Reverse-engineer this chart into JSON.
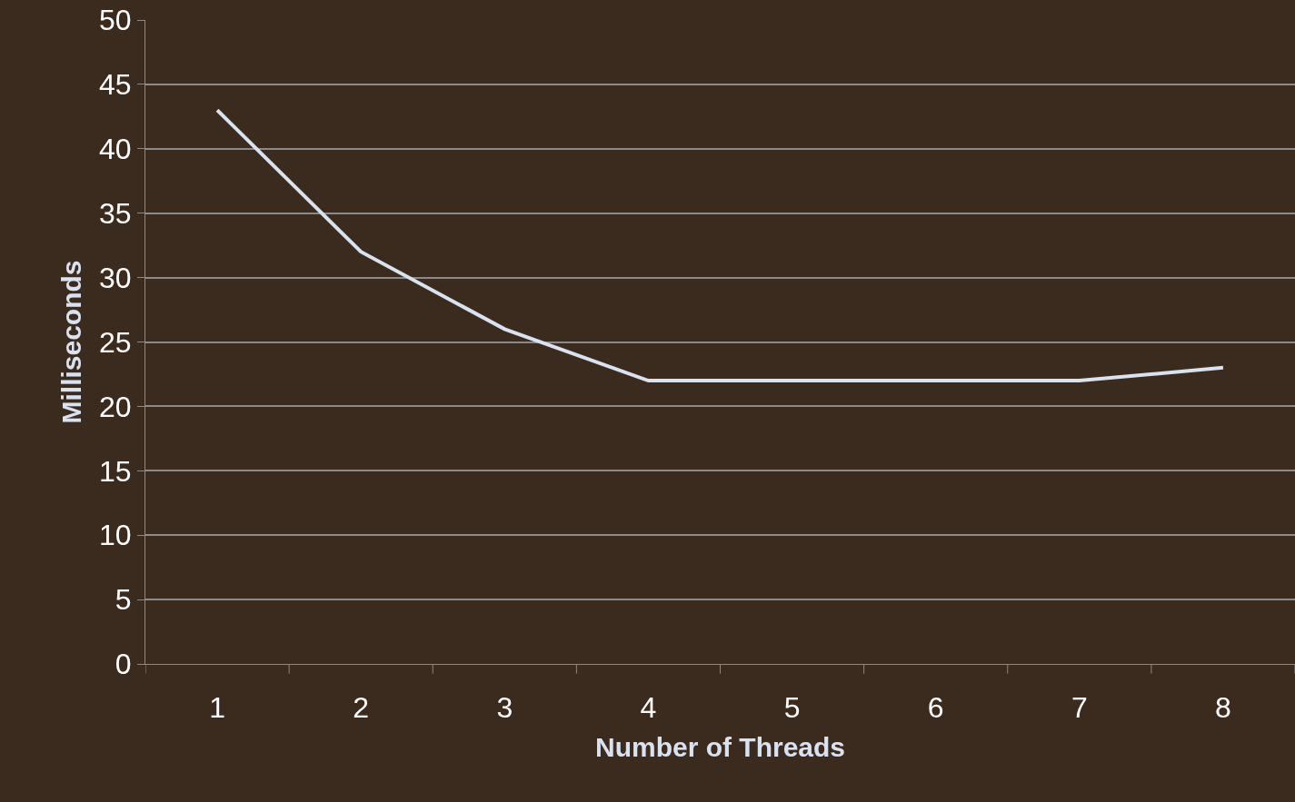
{
  "chart_data": {
    "type": "line",
    "xlabel": "Number of Threads",
    "ylabel": "Milliseconds",
    "categories": [
      "1",
      "2",
      "3",
      "4",
      "5",
      "6",
      "7",
      "8"
    ],
    "series": [
      {
        "color": "#d8e2f0",
        "values": [
          43,
          32,
          26,
          22,
          22,
          22,
          22,
          23
        ]
      }
    ],
    "ylim": [
      0,
      50
    ],
    "yticks": [
      0,
      5,
      10,
      15,
      20,
      25,
      30,
      35,
      40,
      45,
      50
    ],
    "grid": "y",
    "marker": "none",
    "line_style": "solid"
  }
}
